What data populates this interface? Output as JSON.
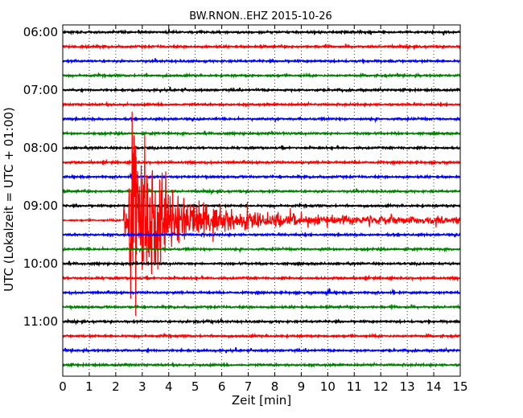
{
  "chart_data": {
    "type": "line",
    "title": "BW.RNON..EHZ 2015-10-26",
    "xlabel": "Zeit  [min]",
    "ylabel": "UTC (Lokalzeit = UTC + 01:00)",
    "xlim": [
      0,
      15
    ],
    "x_ticks": [
      "0",
      "1",
      "2",
      "3",
      "4",
      "5",
      "6",
      "7",
      "8",
      "9",
      "10",
      "11",
      "12",
      "13",
      "14",
      "15"
    ],
    "y_ticks": [
      "06:00",
      "07:00",
      "08:00",
      "09:00",
      "10:00",
      "11:00"
    ],
    "grid": "vertical dotted",
    "trace_start": "06:00",
    "trace_interval_min": 15,
    "trace_count": 24,
    "trace_colors": [
      "#000000",
      "#ff0000",
      "#0000ff",
      "#008000"
    ],
    "event": {
      "trace_hour": "09:15",
      "onset_min": 2.3,
      "peak_min": 2.5,
      "coda_end_min": 15,
      "color": "#ff0000"
    }
  }
}
